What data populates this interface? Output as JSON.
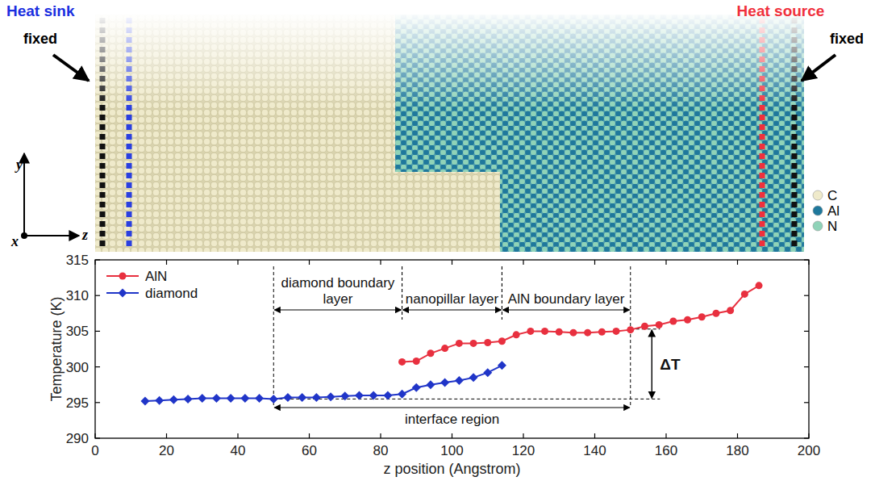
{
  "diagram": {
    "heat_sink": "Heat sink",
    "heat_source": "Heat source",
    "fixed_left": "fixed",
    "fixed_right": "fixed",
    "axes": {
      "x": "x",
      "y": "y",
      "z": "z"
    },
    "atoms": [
      {
        "label": "C",
        "color": "#efeacb"
      },
      {
        "label": "Al",
        "color": "#1f789c"
      },
      {
        "label": "N",
        "color": "#8fd3b8"
      }
    ]
  },
  "chart_data": {
    "type": "line",
    "x_label": "z position (Angstrom)",
    "y_label": "Temperature (K)",
    "xlim": [
      0,
      200
    ],
    "xticks": [
      0,
      20,
      40,
      60,
      80,
      100,
      120,
      140,
      160,
      180,
      200
    ],
    "ylim": [
      290,
      315
    ],
    "yticks": [
      290,
      295,
      300,
      305,
      310,
      315
    ],
    "legend": "upper left",
    "series": [
      {
        "name": "AlN",
        "color": "#e8303f",
        "marker": "circle",
        "line_style": "solid",
        "x": [
          86,
          90,
          94,
          98,
          102,
          106,
          110,
          114,
          118,
          122,
          126,
          130,
          134,
          138,
          142,
          146,
          150,
          154,
          158,
          162,
          166,
          170,
          174,
          178,
          182,
          186
        ],
        "values": [
          300.7,
          300.8,
          301.9,
          302.6,
          303.3,
          303.3,
          303.4,
          303.6,
          304.5,
          305.0,
          305.0,
          304.9,
          304.8,
          304.8,
          304.9,
          305.0,
          305.2,
          305.7,
          305.9,
          306.4,
          306.6,
          307.0,
          307.5,
          307.9,
          310.2,
          311.4
        ]
      },
      {
        "name": "diamond",
        "color": "#2035c8",
        "marker": "diamond",
        "line_style": "solid",
        "x": [
          14,
          18,
          22,
          26,
          30,
          34,
          38,
          42,
          46,
          50,
          54,
          58,
          62,
          66,
          70,
          74,
          78,
          82,
          86,
          90,
          94,
          98,
          102,
          106,
          110,
          114
        ],
        "values": [
          295.2,
          295.3,
          295.4,
          295.5,
          295.6,
          295.6,
          295.6,
          295.6,
          295.6,
          295.5,
          295.7,
          295.7,
          295.7,
          295.8,
          295.9,
          296.0,
          296.0,
          296.0,
          296.2,
          297.1,
          297.5,
          297.8,
          298.1,
          298.5,
          299.2,
          300.2
        ]
      }
    ],
    "regions": [
      {
        "label": "diamond boundary layer",
        "x0": 50,
        "x1": 86
      },
      {
        "label": "nanopillar layer",
        "x0": 86,
        "x1": 114
      },
      {
        "label": "AlN boundary layer",
        "x0": 114,
        "x1": 150
      }
    ],
    "interface_region": {
      "label": "interface region",
      "x0": 50,
      "x1": 150
    },
    "delta_t": {
      "label": "ΔT",
      "x": 156,
      "y0": 295.5,
      "y1": 305.3
    }
  }
}
